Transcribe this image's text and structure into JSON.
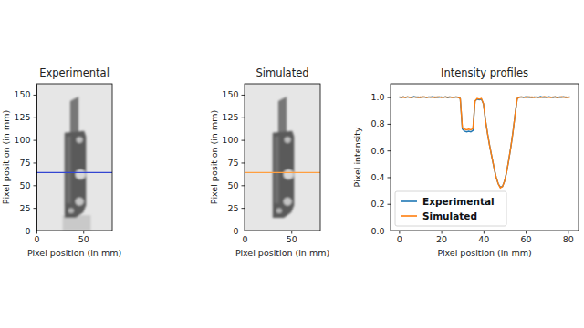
{
  "chart_data": [
    {
      "type": "image",
      "title": "Experimental",
      "x_label": "Pixel position (in mm)",
      "y_label": "Pixel position (in mm)",
      "xlim": [
        0,
        81
      ],
      "ylim": [
        0,
        162
      ],
      "xticks": [
        0,
        50
      ],
      "yticks": [
        0,
        25,
        50,
        75,
        100,
        125,
        150
      ],
      "profile_row": 64,
      "color": "#3346d1"
    },
    {
      "type": "image",
      "title": "Simulated",
      "x_label": "Pixel position (in mm)",
      "y_label": "Pixel position (in mm)",
      "xlim": [
        0,
        81
      ],
      "ylim": [
        0,
        162
      ],
      "xticks": [
        0,
        50
      ],
      "yticks": [
        0,
        25,
        50,
        75,
        100,
        125,
        150
      ],
      "profile_row": 64,
      "color": "#ff9f40"
    },
    {
      "type": "line",
      "title": "Intensity profiles",
      "x_label": "Pixel position (in mm)",
      "y_label": "Pixel intensity",
      "xlim": [
        -4.05,
        85.05
      ],
      "ylim": [
        0,
        1.1
      ],
      "xticks": [
        0,
        20,
        40,
        60,
        80
      ],
      "yticks": [
        {
          "value": 0,
          "label": "0.0"
        },
        {
          "value": 0.2,
          "label": "0.2"
        },
        {
          "value": 0.4,
          "label": "0.4"
        },
        {
          "value": 0.6,
          "label": "0.6"
        },
        {
          "value": 0.8,
          "label": "0.8"
        },
        {
          "value": 1,
          "label": "1.0"
        }
      ],
      "legend": "lower left",
      "x": [
        0,
        1,
        2,
        3,
        4,
        5,
        6,
        7,
        8,
        9,
        10,
        11,
        12,
        13,
        14,
        15,
        16,
        17,
        18,
        19,
        20,
        21,
        22,
        23,
        24,
        25,
        26,
        27,
        28,
        29,
        30,
        31,
        32,
        33,
        34,
        35,
        36,
        37,
        38,
        39,
        40,
        41,
        42,
        43,
        44,
        45,
        46,
        47,
        48,
        49,
        50,
        51,
        52,
        53,
        54,
        55,
        56,
        57,
        58,
        59,
        60,
        61,
        62,
        63,
        64,
        65,
        66,
        67,
        68,
        69,
        70,
        71,
        72,
        73,
        74,
        75,
        76,
        77,
        78,
        79,
        80,
        81
      ],
      "series": [
        {
          "name": "Experimental",
          "color": "#1f77b4",
          "values": [
            1.0,
            0.998,
            1.003,
            0.997,
            1.002,
            1.0,
            0.996,
            1.004,
            0.999,
            1.001,
            0.997,
            1.003,
            1.0,
            0.998,
            1.002,
            0.999,
            1.004,
            0.997,
            1.001,
            0.999,
            1.002,
            0.998,
            1.003,
            0.996,
            1.001,
            1.0,
            0.998,
            1.002,
            0.999,
            0.99,
            0.76,
            0.745,
            0.74,
            0.745,
            0.74,
            0.75,
            0.97,
            0.985,
            0.98,
            0.985,
            0.95,
            0.82,
            0.72,
            0.63,
            0.55,
            0.47,
            0.4,
            0.35,
            0.325,
            0.33,
            0.37,
            0.44,
            0.53,
            0.63,
            0.74,
            0.87,
            0.99,
            1.0,
            1.002,
            0.998,
            1.003,
            0.999,
            1.001,
            0.997,
            1.002,
            1.0,
            0.998,
            1.004,
            0.999,
            1.001,
            0.997,
            1.003,
            1.0,
            0.998,
            1.002,
            0.996,
            1.001,
            0.999,
            1.003,
            0.998,
            1.0,
            1.002
          ]
        },
        {
          "name": "Simulated",
          "color": "#ff7f0e",
          "values": [
            1.002,
            0.999,
            1.001,
            0.998,
            1.003,
            0.997,
            1.001,
            1.0,
            1.002,
            0.998,
            1.001,
            0.999,
            1.003,
            0.997,
            1.0,
            1.002,
            0.998,
            1.001,
            0.999,
            1.003,
            0.997,
            1.0,
            1.001,
            0.999,
            1.002,
            0.998,
            1.0,
            1.001,
            0.998,
            0.99,
            0.77,
            0.76,
            0.755,
            0.76,
            0.755,
            0.765,
            0.97,
            0.99,
            0.985,
            0.99,
            0.95,
            0.82,
            0.72,
            0.63,
            0.55,
            0.47,
            0.4,
            0.35,
            0.32,
            0.33,
            0.37,
            0.44,
            0.53,
            0.63,
            0.74,
            0.87,
            0.99,
            0.999,
            1.002,
            1.0,
            0.998,
            1.003,
            0.999,
            1.001,
            0.998,
            1.002,
            1.0,
            0.997,
            1.001,
            1.003,
            0.999,
            1.0,
            0.998,
            1.002,
            1.001,
            0.997,
            1.0,
            1.003,
            0.999,
            1.001,
            0.998,
            1.0
          ]
        }
      ]
    }
  ]
}
